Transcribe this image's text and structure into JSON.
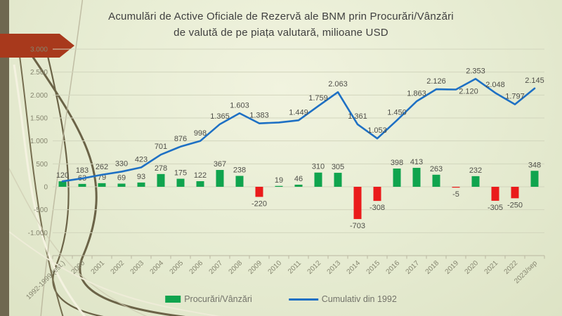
{
  "slide": {
    "title_line1": "Acumulări de Active Oficiale de Rezervă ale BNM prin Procurări/Vânzări",
    "title_line2": "de valută de pe piața valutară, milioane USD"
  },
  "legend": {
    "bars_label": "Procurări/Vânzări",
    "line_label": "Cumulativ din 1992"
  },
  "colors": {
    "bar_positive": "#10a44e",
    "bar_negative": "#ea1b1b",
    "line": "#1e70c4",
    "gridline": "#d2d5bd",
    "axis_line": "#b9b6a0",
    "axis_text": "#85856f",
    "label_text": "#4f4f49",
    "accent_arrow": "#a8391c",
    "side_strip": "#6f6850"
  },
  "chart_data": {
    "type": "bar+line",
    "title": "Acumulări de Active Oficiale de Rezervă ale BNM prin Procurări/Vânzări de valută de pe piața valutară, milioane USD",
    "unit": "milioane USD",
    "categories": [
      "1992-1999 (est.)",
      "2000",
      "2001",
      "2002",
      "2003",
      "2004",
      "2005",
      "2006",
      "2007",
      "2008",
      "2009",
      "2010",
      "2011",
      "2012",
      "2013",
      "2014",
      "2015",
      "2016",
      "2017",
      "2018",
      "2019",
      "2020",
      "2021",
      "2022",
      "2023/sep"
    ],
    "series": [
      {
        "name": "Procurări/Vânzări",
        "type": "bar",
        "values": [
          120,
          63,
          79,
          69,
          93,
          278,
          175,
          122,
          367,
          238,
          -220,
          19,
          46,
          310,
          305,
          -703,
          -308,
          398,
          413,
          263,
          -5,
          232,
          -305,
          -250,
          348
        ],
        "labels": [
          "120",
          "63",
          "79",
          "69",
          "93",
          "278",
          "175",
          "122",
          "367",
          "238",
          "-220",
          "19",
          "46",
          "310",
          "305",
          "-703",
          "-308",
          "398",
          "413",
          "263",
          "-5",
          "232",
          "-305",
          "-250",
          "348"
        ]
      },
      {
        "name": "Cumulativ din 1992",
        "type": "line",
        "values": [
          120,
          183,
          262,
          330,
          423,
          701,
          876,
          998,
          1365,
          1603,
          1383,
          1402,
          1449,
          1759,
          2063,
          1361,
          1053,
          1450,
          1863,
          2126,
          2120,
          2353,
          2048,
          1797,
          2145
        ],
        "labels": [
          null,
          "183",
          "262",
          "330",
          "423",
          "701",
          "876",
          "998",
          "1.365",
          "1.603",
          "1.383",
          null,
          "1.449",
          "1.759",
          "2.063",
          "1.361",
          "1.053",
          "1.450",
          "1.863",
          "2.126",
          "2.120",
          "2.353",
          "2.048",
          "1.797",
          "2.145"
        ]
      }
    ],
    "y_axis": {
      "ticks": [
        "3.000",
        "2.500",
        "2.000",
        "1.500",
        "1.000",
        "500",
        "0",
        "-500",
        "-1.000"
      ],
      "tick_values": [
        3000,
        2500,
        2000,
        1500,
        1000,
        500,
        0,
        -500,
        -1000
      ],
      "ylim": [
        -1500,
        3000
      ],
      "grid": true
    },
    "legend_position": "bottom"
  }
}
